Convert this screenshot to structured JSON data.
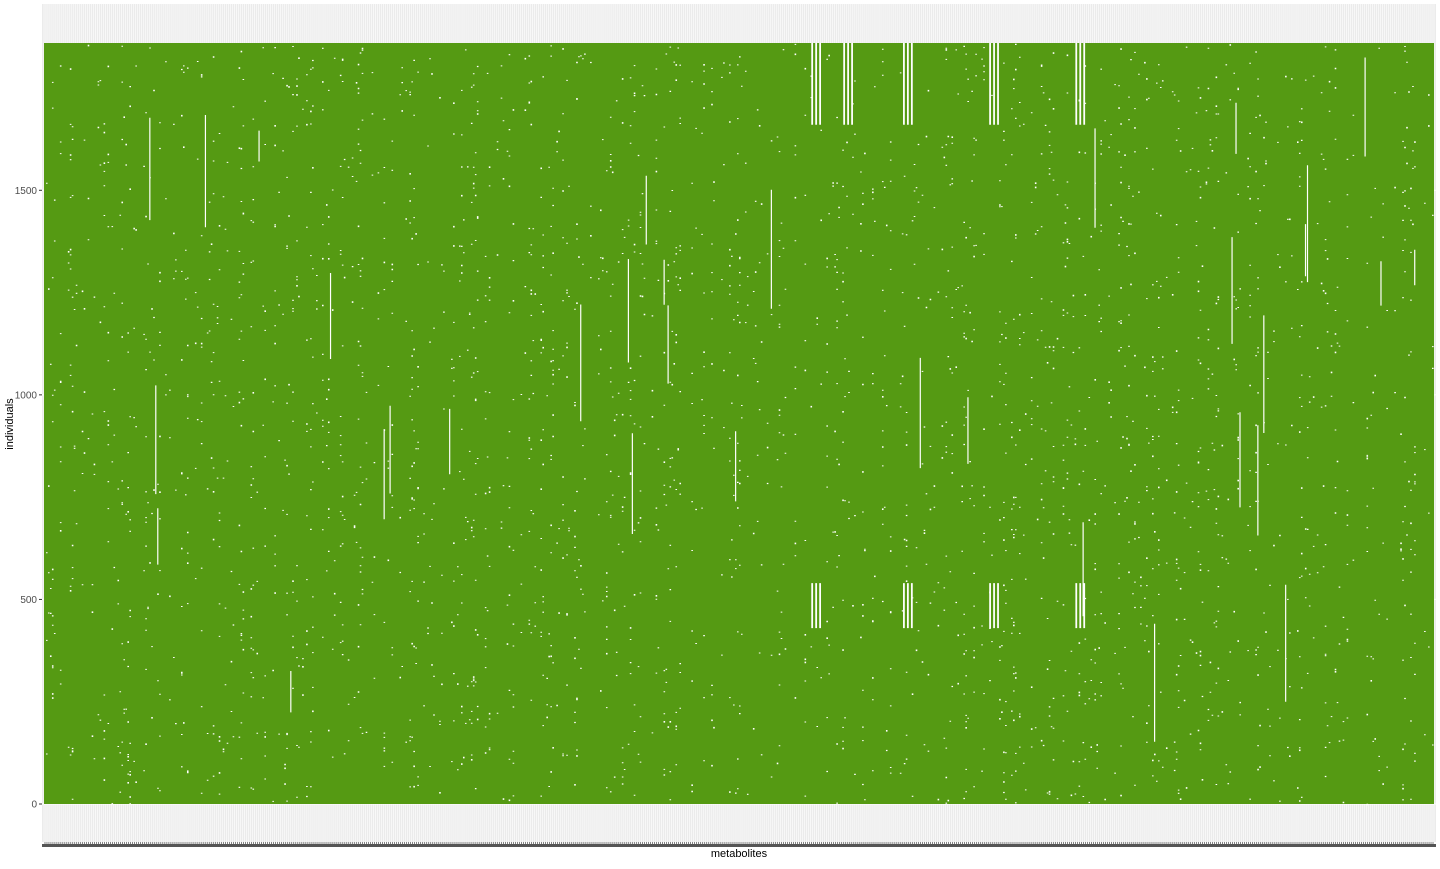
{
  "chart_data": {
    "type": "heatmap",
    "title": "",
    "xlabel": "metabolites",
    "ylabel": "individuals",
    "ylim": [
      0,
      1860
    ],
    "y_ticks": [
      {
        "value": 0,
        "label": "0"
      },
      {
        "value": 500,
        "label": "500"
      },
      {
        "value": 1000,
        "label": "1000"
      },
      {
        "value": 1500,
        "label": "1500"
      }
    ],
    "n_metabolites_approx": 700,
    "n_individuals": 1860,
    "fill_color_present": "#559a13",
    "fill_color_missing": "#ffffff",
    "panel_background": "#ebebeb",
    "grid": true,
    "legend": "none",
    "missing_blocks": [
      {
        "x_frac": [
          0.552,
          0.56
        ],
        "y": [
          1660,
          1860
        ]
      },
      {
        "x_frac": [
          0.575,
          0.582
        ],
        "y": [
          1660,
          1860
        ]
      },
      {
        "x_frac": [
          0.618,
          0.626
        ],
        "y": [
          1660,
          1860
        ]
      },
      {
        "x_frac": [
          0.68,
          0.688
        ],
        "y": [
          1660,
          1860
        ]
      },
      {
        "x_frac": [
          0.742,
          0.75
        ],
        "y": [
          1660,
          1860
        ]
      },
      {
        "x_frac": [
          0.552,
          0.56
        ],
        "y": [
          430,
          540
        ]
      },
      {
        "x_frac": [
          0.618,
          0.626
        ],
        "y": [
          430,
          540
        ]
      },
      {
        "x_frac": [
          0.68,
          0.688
        ],
        "y": [
          430,
          540
        ]
      },
      {
        "x_frac": [
          0.742,
          0.75
        ],
        "y": [
          430,
          540
        ]
      }
    ]
  }
}
